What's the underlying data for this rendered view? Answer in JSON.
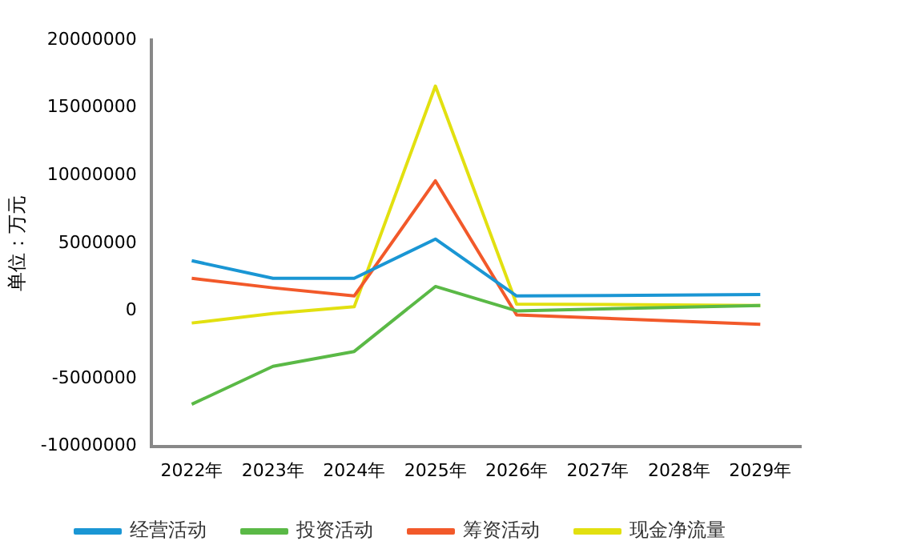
{
  "chart_data": {
    "type": "line",
    "ylabel": "单位：万元",
    "categories": [
      "2022年",
      "2023年",
      "2024年",
      "2025年",
      "2026年",
      "2027年",
      "2028年",
      "2029年"
    ],
    "series": [
      {
        "name": "经营活动",
        "color": "#1a96d4",
        "values": [
          3700000,
          2400000,
          2400000,
          5300000,
          1100000,
          null,
          null,
          1200000
        ]
      },
      {
        "name": "投资活动",
        "color": "#5ab946",
        "values": [
          -6900000,
          -4100000,
          -3000000,
          1800000,
          0,
          null,
          null,
          400000
        ]
      },
      {
        "name": "筹资活动",
        "color": "#f2592a",
        "values": [
          2400000,
          1700000,
          1100000,
          9600000,
          -300000,
          null,
          null,
          -1000000
        ]
      },
      {
        "name": "现金净流量",
        "color": "#e2e010",
        "values": [
          -900000,
          -200000,
          300000,
          16600000,
          500000,
          null,
          null,
          400000
        ]
      }
    ],
    "ylim": [
      -10000000,
      20000000
    ],
    "yticks": [
      -10000000,
      -5000000,
      0,
      5000000,
      10000000,
      15000000,
      20000000
    ],
    "grid": false,
    "legend": "bottom",
    "marker": "none",
    "line_style": "solid"
  }
}
